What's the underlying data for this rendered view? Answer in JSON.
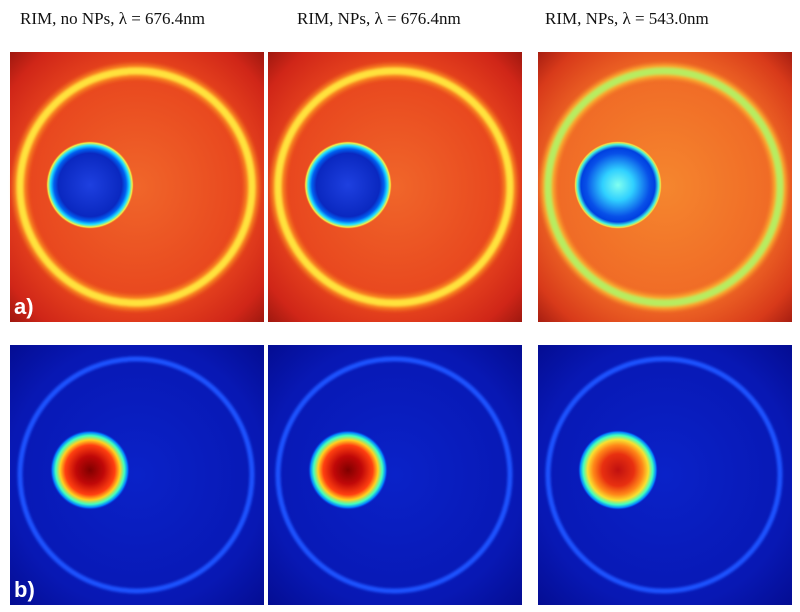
{
  "columns": [
    {
      "title": "RIM, no NPs,  λ = 676.4nm"
    },
    {
      "title": "RIM, NPs,  λ = 676.4nm"
    },
    {
      "title": "RIM, NPs,  λ = 543.0nm"
    }
  ],
  "rows": [
    {
      "label": "a)"
    },
    {
      "label": "b)"
    }
  ]
}
